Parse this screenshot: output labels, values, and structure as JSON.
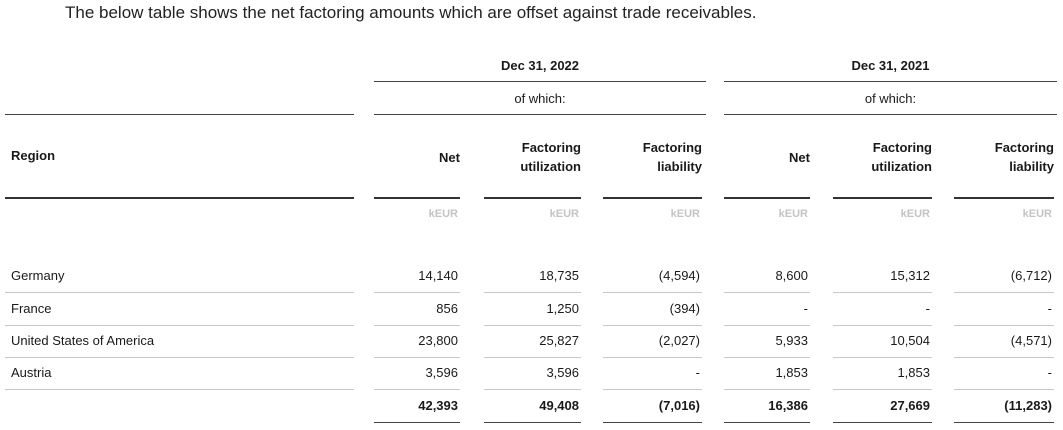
{
  "intro": "The below table shows the net factoring amounts which are offset against trade receivables.",
  "periods": [
    {
      "label": "Dec 31, 2022",
      "of_which": "of which:"
    },
    {
      "label": "Dec 31, 2021",
      "of_which": "of which:"
    }
  ],
  "headers": {
    "region": "Region",
    "columns": [
      {
        "line1": "Net",
        "line2": ""
      },
      {
        "line1": "Factoring",
        "line2": "utilization"
      },
      {
        "line1": "Factoring",
        "line2": "liability"
      },
      {
        "line1": "Net",
        "line2": ""
      },
      {
        "line1": "Factoring",
        "line2": "utilization"
      },
      {
        "line1": "Factoring",
        "line2": "liability"
      }
    ]
  },
  "unit": "kEUR",
  "rows": [
    {
      "region": "Germany",
      "values": [
        "14,140",
        "18,735",
        "(4,594)",
        "8,600",
        "15,312",
        "(6,712)"
      ]
    },
    {
      "region": "France",
      "values": [
        "856",
        "1,250",
        "(394)",
        "-",
        "-",
        "-"
      ]
    },
    {
      "region": "United States of America",
      "values": [
        "23,800",
        "25,827",
        "(2,027)",
        "5,933",
        "10,504",
        "(4,571)"
      ]
    },
    {
      "region": "Austria",
      "values": [
        "3,596",
        "3,596",
        "-",
        "1,853",
        "1,853",
        "-"
      ]
    }
  ],
  "total": {
    "values": [
      "42,393",
      "49,408",
      "(7,016)",
      "16,386",
      "27,669",
      "(11,283)"
    ]
  }
}
